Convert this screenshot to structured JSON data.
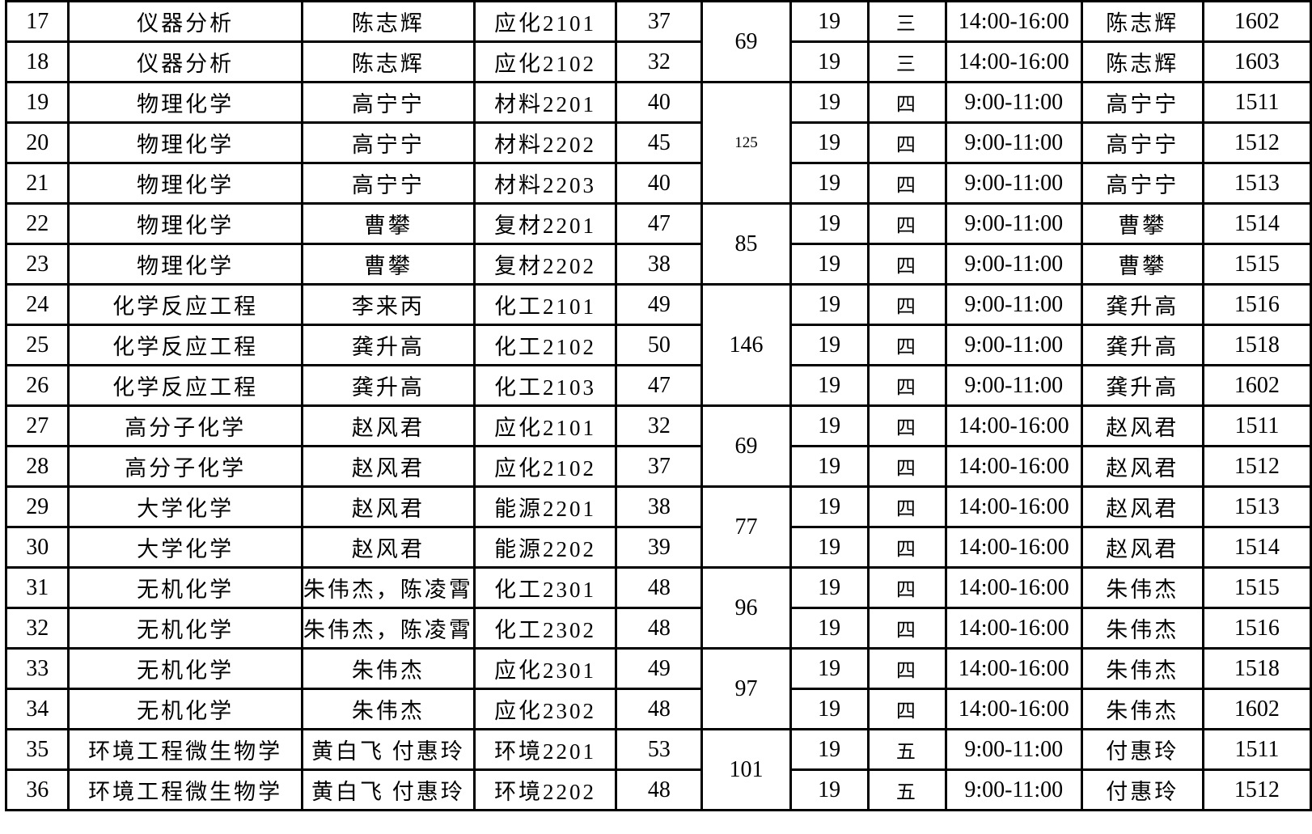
{
  "page": {
    "background": "#ffffff",
    "border_color": "#000000",
    "text_color": "#000000"
  },
  "table": {
    "rows": [
      {
        "seq": "17",
        "course": "仪器分析",
        "teacher": "陈志辉",
        "class_name": "应化2101",
        "count": "37",
        "week": "19",
        "day": "三",
        "time": "14:00-16:00",
        "invigilator": "陈志辉",
        "room": "1602"
      },
      {
        "seq": "18",
        "course": "仪器分析",
        "teacher": "陈志辉",
        "class_name": "应化2102",
        "count": "32",
        "week": "19",
        "day": "三",
        "time": "14:00-16:00",
        "invigilator": "陈志辉",
        "room": "1603"
      },
      {
        "seq": "19",
        "course": "物理化学",
        "teacher": "高宁宁",
        "class_name": "材料2201",
        "count": "40",
        "week": "19",
        "day": "四",
        "time": "9:00-11:00",
        "invigilator": "高宁宁",
        "room": "1511"
      },
      {
        "seq": "20",
        "course": "物理化学",
        "teacher": "高宁宁",
        "class_name": "材料2202",
        "count": "45",
        "week": "19",
        "day": "四",
        "time": "9:00-11:00",
        "invigilator": "高宁宁",
        "room": "1512"
      },
      {
        "seq": "21",
        "course": "物理化学",
        "teacher": "高宁宁",
        "class_name": "材料2203",
        "count": "40",
        "week": "19",
        "day": "四",
        "time": "9:00-11:00",
        "invigilator": "高宁宁",
        "room": "1513"
      },
      {
        "seq": "22",
        "course": "物理化学",
        "teacher": "曹攀",
        "class_name": "复材2201",
        "count": "47",
        "week": "19",
        "day": "四",
        "time": "9:00-11:00",
        "invigilator": "曹攀",
        "room": "1514"
      },
      {
        "seq": "23",
        "course": "物理化学",
        "teacher": "曹攀",
        "class_name": "复材2202",
        "count": "38",
        "week": "19",
        "day": "四",
        "time": "9:00-11:00",
        "invigilator": "曹攀",
        "room": "1515"
      },
      {
        "seq": "24",
        "course": "化学反应工程",
        "teacher": "李来丙",
        "class_name": "化工2101",
        "count": "49",
        "week": "19",
        "day": "四",
        "time": "9:00-11:00",
        "invigilator": "龚升高",
        "room": "1516"
      },
      {
        "seq": "25",
        "course": "化学反应工程",
        "teacher": "龚升高",
        "class_name": "化工2102",
        "count": "50",
        "week": "19",
        "day": "四",
        "time": "9:00-11:00",
        "invigilator": "龚升高",
        "room": "1518"
      },
      {
        "seq": "26",
        "course": "化学反应工程",
        "teacher": "龚升高",
        "class_name": "化工2103",
        "count": "47",
        "week": "19",
        "day": "四",
        "time": "9:00-11:00",
        "invigilator": "龚升高",
        "room": "1602"
      },
      {
        "seq": "27",
        "course": "高分子化学",
        "teacher": "赵风君",
        "class_name": "应化2101",
        "count": "32",
        "week": "19",
        "day": "四",
        "time": "14:00-16:00",
        "invigilator": "赵风君",
        "room": "1511"
      },
      {
        "seq": "28",
        "course": "高分子化学",
        "teacher": "赵风君",
        "class_name": "应化2102",
        "count": "37",
        "week": "19",
        "day": "四",
        "time": "14:00-16:00",
        "invigilator": "赵风君",
        "room": "1512"
      },
      {
        "seq": "29",
        "course": "大学化学",
        "teacher": "赵风君",
        "class_name": "能源2201",
        "count": "38",
        "week": "19",
        "day": "四",
        "time": "14:00-16:00",
        "invigilator": "赵风君",
        "room": "1513"
      },
      {
        "seq": "30",
        "course": "大学化学",
        "teacher": "赵风君",
        "class_name": "能源2202",
        "count": "39",
        "week": "19",
        "day": "四",
        "time": "14:00-16:00",
        "invigilator": "赵风君",
        "room": "1514"
      },
      {
        "seq": "31",
        "course": "无机化学",
        "teacher": "朱伟杰，陈凌霄",
        "class_name": "化工2301",
        "count": "48",
        "week": "19",
        "day": "四",
        "time": "14:00-16:00",
        "invigilator": "朱伟杰",
        "room": "1515"
      },
      {
        "seq": "32",
        "course": "无机化学",
        "teacher": "朱伟杰，陈凌霄",
        "class_name": "化工2302",
        "count": "48",
        "week": "19",
        "day": "四",
        "time": "14:00-16:00",
        "invigilator": "朱伟杰",
        "room": "1516"
      },
      {
        "seq": "33",
        "course": "无机化学",
        "teacher": "朱伟杰",
        "class_name": "应化2301",
        "count": "49",
        "week": "19",
        "day": "四",
        "time": "14:00-16:00",
        "invigilator": "朱伟杰",
        "room": "1518"
      },
      {
        "seq": "34",
        "course": "无机化学",
        "teacher": "朱伟杰",
        "class_name": "应化2302",
        "count": "48",
        "week": "19",
        "day": "四",
        "time": "14:00-16:00",
        "invigilator": "朱伟杰",
        "room": "1602"
      },
      {
        "seq": "35",
        "course": "环境工程微生物学",
        "teacher": "黄白飞 付惠玲",
        "class_name": "环境2201",
        "count": "53",
        "week": "19",
        "day": "五",
        "time": "9:00-11:00",
        "invigilator": "付惠玲",
        "room": "1511"
      },
      {
        "seq": "36",
        "course": "环境工程微生物学",
        "teacher": "黄白飞 付惠玲",
        "class_name": "环境2202",
        "count": "48",
        "week": "19",
        "day": "五",
        "time": "9:00-11:00",
        "invigilator": "付惠玲",
        "room": "1512"
      }
    ],
    "merged_totals": [
      {
        "row_start": 0,
        "span": 2,
        "value": "69",
        "small": false
      },
      {
        "row_start": 2,
        "span": 3,
        "value": "125",
        "small": true
      },
      {
        "row_start": 5,
        "span": 2,
        "value": "85",
        "small": false
      },
      {
        "row_start": 7,
        "span": 3,
        "value": "146",
        "small": false
      },
      {
        "row_start": 10,
        "span": 2,
        "value": "69",
        "small": false
      },
      {
        "row_start": 12,
        "span": 2,
        "value": "77",
        "small": false
      },
      {
        "row_start": 14,
        "span": 2,
        "value": "96",
        "small": false
      },
      {
        "row_start": 16,
        "span": 2,
        "value": "97",
        "small": false
      },
      {
        "row_start": 18,
        "span": 2,
        "value": "101",
        "small": false
      }
    ]
  }
}
